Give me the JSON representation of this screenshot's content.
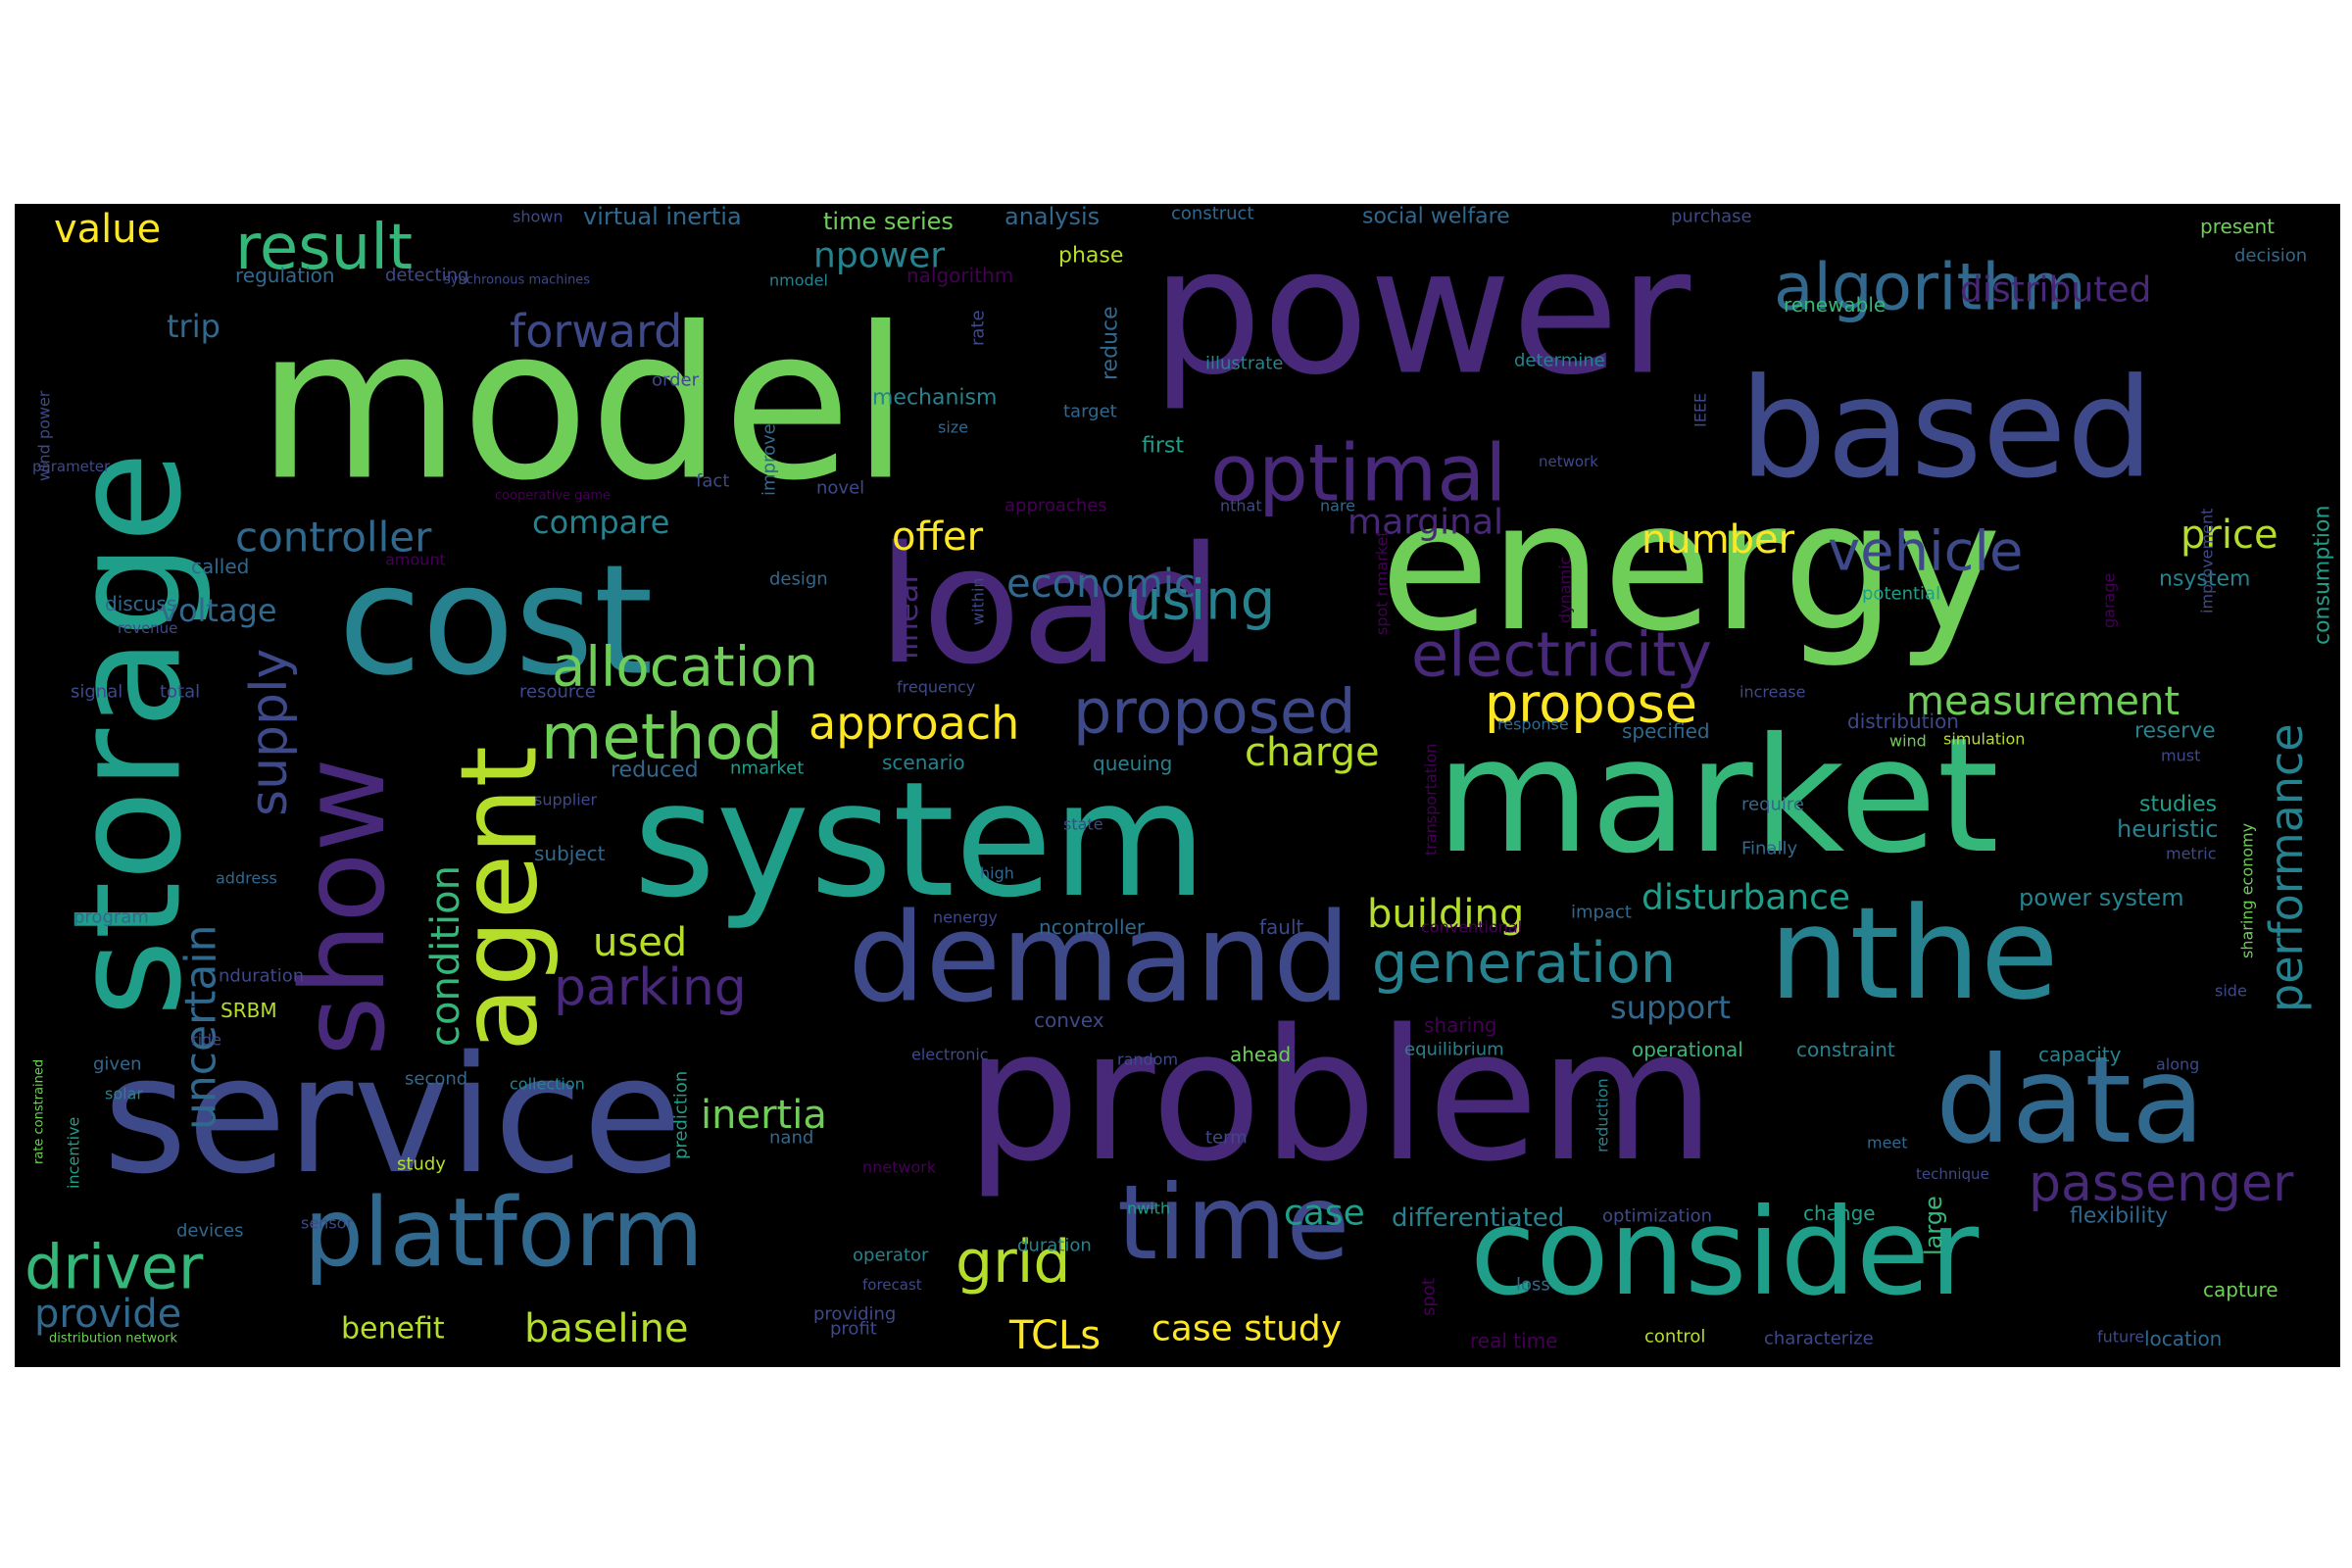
{
  "palette": {
    "background": "#000000",
    "page": "#ffffff",
    "colors": [
      "#440154",
      "#482878",
      "#3e4989",
      "#31688e",
      "#26828e",
      "#1f9e89",
      "#35b779",
      "#6ece58",
      "#b5de2b",
      "#fde725"
    ]
  },
  "words": [
    {
      "text": "model",
      "color": "#6ece58"
    },
    {
      "text": "power",
      "color": "#482878"
    },
    {
      "text": "energy",
      "color": "#6ece58"
    },
    {
      "text": "system",
      "color": "#1f9e89"
    },
    {
      "text": "market",
      "color": "#35b779"
    },
    {
      "text": "problem",
      "color": "#482878"
    },
    {
      "text": "service",
      "color": "#3e4989"
    },
    {
      "text": "storage",
      "color": "#1f9e89"
    },
    {
      "text": "cost",
      "color": "#26828e"
    },
    {
      "text": "load",
      "color": "#482878"
    },
    {
      "text": "based",
      "color": "#3e4989"
    },
    {
      "text": "nthe",
      "color": "#26828e"
    },
    {
      "text": "demand",
      "color": "#3e4989"
    },
    {
      "text": "consider",
      "color": "#1f9e89"
    },
    {
      "text": "data",
      "color": "#31688e"
    },
    {
      "text": "show",
      "color": "#482878"
    },
    {
      "text": "platform",
      "color": "#31688e"
    },
    {
      "text": "time",
      "color": "#3e4989"
    },
    {
      "text": "agent",
      "color": "#b5de2b"
    },
    {
      "text": "optimal",
      "color": "#482878"
    },
    {
      "text": "algorithm",
      "color": "#31688e"
    },
    {
      "text": "result",
      "color": "#35b779"
    },
    {
      "text": "method",
      "color": "#6ece58"
    },
    {
      "text": "electricity",
      "color": "#482878"
    },
    {
      "text": "allocation",
      "color": "#6ece58"
    },
    {
      "text": "proposed",
      "color": "#3e4989"
    },
    {
      "text": "generation",
      "color": "#26828e"
    },
    {
      "text": "driver",
      "color": "#35b779"
    },
    {
      "text": "parking",
      "color": "#482878"
    },
    {
      "text": "approach",
      "color": "#fde725"
    },
    {
      "text": "propose",
      "color": "#fde725"
    },
    {
      "text": "vehicle",
      "color": "#3e4989"
    },
    {
      "text": "using",
      "color": "#26828e"
    },
    {
      "text": "performance",
      "color": "#26828e"
    },
    {
      "text": "supply",
      "color": "#3e4989"
    },
    {
      "text": "passenger",
      "color": "#482878"
    },
    {
      "text": "grid",
      "color": "#b5de2b"
    },
    {
      "text": "forward",
      "color": "#3e4989"
    },
    {
      "text": "controller",
      "color": "#31688e"
    },
    {
      "text": "economic",
      "color": "#31688e"
    },
    {
      "text": "uncertain",
      "color": "#31688e"
    },
    {
      "text": "condition",
      "color": "#35b779"
    },
    {
      "text": "measurement",
      "color": "#6ece58"
    },
    {
      "text": "building",
      "color": "#b5de2b"
    },
    {
      "text": "baseline",
      "color": "#b5de2b"
    },
    {
      "text": "inertia",
      "color": "#6ece58"
    },
    {
      "text": "distributed",
      "color": "#482878"
    },
    {
      "text": "price",
      "color": "#b5de2b"
    },
    {
      "text": "offer",
      "color": "#fde725"
    },
    {
      "text": "number",
      "color": "#fde725"
    },
    {
      "text": "charge",
      "color": "#b5de2b"
    },
    {
      "text": "TCLs",
      "color": "#fde725"
    },
    {
      "text": "case study",
      "color": "#fde725"
    },
    {
      "text": "provide",
      "color": "#31688e"
    },
    {
      "text": "value",
      "color": "#fde725"
    },
    {
      "text": "marginal",
      "color": "#482878"
    },
    {
      "text": "used",
      "color": "#b5de2b"
    },
    {
      "text": "disturbance",
      "color": "#1f9e89"
    },
    {
      "text": "npower",
      "color": "#26828e"
    },
    {
      "text": "compare",
      "color": "#26828e"
    },
    {
      "text": "voltage",
      "color": "#31688e"
    },
    {
      "text": "case",
      "color": "#1f9e89"
    },
    {
      "text": "support",
      "color": "#31688e"
    },
    {
      "text": "linear",
      "color": "#482878"
    },
    {
      "text": "trip",
      "color": "#31688e"
    },
    {
      "text": "benefit",
      "color": "#b5de2b"
    },
    {
      "text": "differentiated",
      "color": "#26828e"
    },
    {
      "text": "large",
      "color": "#35b779"
    },
    {
      "text": "flexibility",
      "color": "#31688e"
    },
    {
      "text": "consumption",
      "color": "#1f9e89"
    },
    {
      "text": "heuristic",
      "color": "#26828e"
    },
    {
      "text": "power system",
      "color": "#26828e"
    },
    {
      "text": "studies",
      "color": "#1f9e89"
    },
    {
      "text": "reserve",
      "color": "#26828e"
    },
    {
      "text": "nsystem",
      "color": "#26828e"
    },
    {
      "text": "analysis",
      "color": "#31688e"
    },
    {
      "text": "time series",
      "color": "#6ece58"
    },
    {
      "text": "virtual inertia",
      "color": "#31688e"
    },
    {
      "text": "social welfare",
      "color": "#31688e"
    },
    {
      "text": "phase",
      "color": "#b5de2b"
    },
    {
      "text": "mechanism",
      "color": "#26828e"
    },
    {
      "text": "reduce",
      "color": "#31688e"
    },
    {
      "text": "first",
      "color": "#1f9e89"
    },
    {
      "text": "nalgorithm",
      "color": "#440154"
    },
    {
      "text": "regulation",
      "color": "#31688e"
    },
    {
      "text": "renewable",
      "color": "#35b779"
    },
    {
      "text": "present",
      "color": "#6ece58"
    },
    {
      "text": "decision",
      "color": "#31688e"
    },
    {
      "text": "construct",
      "color": "#31688e"
    },
    {
      "text": "purchase",
      "color": "#3e4989"
    },
    {
      "text": "detecting",
      "color": "#3e4989"
    },
    {
      "text": "synchronous machines",
      "color": "#3e4989"
    },
    {
      "text": "nmodel",
      "color": "#26828e"
    },
    {
      "text": "shown",
      "color": "#3e4989"
    },
    {
      "text": "rate",
      "color": "#3e4989"
    },
    {
      "text": "illustrate",
      "color": "#26828e"
    },
    {
      "text": "determine",
      "color": "#26828e"
    },
    {
      "text": "target",
      "color": "#31688e"
    },
    {
      "text": "order",
      "color": "#3e4989"
    },
    {
      "text": "improve",
      "color": "#31688e"
    },
    {
      "text": "IEEE",
      "color": "#3e4989"
    },
    {
      "text": "size",
      "color": "#31688e"
    },
    {
      "text": "wind power",
      "color": "#3e4989"
    },
    {
      "text": "parameter",
      "color": "#3e4989"
    },
    {
      "text": "fact",
      "color": "#3e4989"
    },
    {
      "text": "novel",
      "color": "#3e4989"
    },
    {
      "text": "nthat",
      "color": "#3e4989"
    },
    {
      "text": "network",
      "color": "#3e4989"
    },
    {
      "text": "nare",
      "color": "#31688e"
    },
    {
      "text": "cooperative game",
      "color": "#440154"
    },
    {
      "text": "approaches",
      "color": "#440154"
    },
    {
      "text": "called",
      "color": "#31688e"
    },
    {
      "text": "amount",
      "color": "#440154"
    },
    {
      "text": "discuss",
      "color": "#31688e"
    },
    {
      "text": "revenue",
      "color": "#3e4989"
    },
    {
      "text": "design",
      "color": "#31688e"
    },
    {
      "text": "within",
      "color": "#3e4989"
    },
    {
      "text": "spot nmarket",
      "color": "#440154"
    },
    {
      "text": "dynamic",
      "color": "#440154"
    },
    {
      "text": "potential",
      "color": "#1f9e89"
    },
    {
      "text": "improvement",
      "color": "#3e4989"
    },
    {
      "text": "garage",
      "color": "#440154"
    },
    {
      "text": "signal",
      "color": "#3e4989"
    },
    {
      "text": "total",
      "color": "#3e4989"
    },
    {
      "text": "resource",
      "color": "#3e4989"
    },
    {
      "text": "frequency",
      "color": "#3e4989"
    },
    {
      "text": "increase",
      "color": "#3e4989"
    },
    {
      "text": "distribution",
      "color": "#3e4989"
    },
    {
      "text": "specified",
      "color": "#31688e"
    },
    {
      "text": "response",
      "color": "#31688e"
    },
    {
      "text": "wind",
      "color": "#6ece58"
    },
    {
      "text": "simulation",
      "color": "#b5de2b"
    },
    {
      "text": "must",
      "color": "#3e4989"
    },
    {
      "text": "sharing economy",
      "color": "#6ece58"
    },
    {
      "text": "reduced",
      "color": "#31688e"
    },
    {
      "text": "nmarket",
      "color": "#1f9e89"
    },
    {
      "text": "scenario",
      "color": "#26828e"
    },
    {
      "text": "queuing",
      "color": "#26828e"
    },
    {
      "text": "transportation",
      "color": "#440154"
    },
    {
      "text": "supplier",
      "color": "#3e4989"
    },
    {
      "text": "state",
      "color": "#3e4989"
    },
    {
      "text": "require",
      "color": "#31688e"
    },
    {
      "text": "subject",
      "color": "#31688e"
    },
    {
      "text": "Finally",
      "color": "#31688e"
    },
    {
      "text": "metric",
      "color": "#3e4989"
    },
    {
      "text": "address",
      "color": "#31688e"
    },
    {
      "text": "high",
      "color": "#31688e"
    },
    {
      "text": "program",
      "color": "#31688e"
    },
    {
      "text": "nenergy",
      "color": "#3e4989"
    },
    {
      "text": "ncontroller",
      "color": "#31688e"
    },
    {
      "text": "fault",
      "color": "#3e4989"
    },
    {
      "text": "conventional",
      "color": "#440154"
    },
    {
      "text": "impact",
      "color": "#31688e"
    },
    {
      "text": "nduration",
      "color": "#3e4989"
    },
    {
      "text": "SRBM",
      "color": "#b5de2b"
    },
    {
      "text": "ride",
      "color": "#3e4989"
    },
    {
      "text": "rate constrained",
      "color": "#6ece58"
    },
    {
      "text": "side",
      "color": "#3e4989"
    },
    {
      "text": "sharing",
      "color": "#440154"
    },
    {
      "text": "convex",
      "color": "#3e4989"
    },
    {
      "text": "equilibrium",
      "color": "#26828e"
    },
    {
      "text": "electronic",
      "color": "#3e4989"
    },
    {
      "text": "random",
      "color": "#3e4989"
    },
    {
      "text": "ahead",
      "color": "#6ece58"
    },
    {
      "text": "operational",
      "color": "#35b779"
    },
    {
      "text": "constraint",
      "color": "#26828e"
    },
    {
      "text": "capacity",
      "color": "#26828e"
    },
    {
      "text": "along",
      "color": "#3e4989"
    },
    {
      "text": "given",
      "color": "#31688e"
    },
    {
      "text": "solar",
      "color": "#26828e"
    },
    {
      "text": "incentive",
      "color": "#1f9e89"
    },
    {
      "text": "second",
      "color": "#31688e"
    },
    {
      "text": "collection",
      "color": "#26828e"
    },
    {
      "text": "prediction",
      "color": "#1f9e89"
    },
    {
      "text": "reduction",
      "color": "#26828e"
    },
    {
      "text": "study",
      "color": "#b5de2b"
    },
    {
      "text": "nand",
      "color": "#31688e"
    },
    {
      "text": "nnetwork",
      "color": "#440154"
    },
    {
      "text": "term",
      "color": "#3e4989"
    },
    {
      "text": "meet",
      "color": "#31688e"
    },
    {
      "text": "technique",
      "color": "#3e4989"
    },
    {
      "text": "change",
      "color": "#1f9e89"
    },
    {
      "text": "optimization",
      "color": "#3e4989"
    },
    {
      "text": "nwith",
      "color": "#1f9e89"
    },
    {
      "text": "devices",
      "color": "#31688e"
    },
    {
      "text": "sensor",
      "color": "#3e4989"
    },
    {
      "text": "operator",
      "color": "#26828e"
    },
    {
      "text": "duration",
      "color": "#26828e"
    },
    {
      "text": "forecast",
      "color": "#3e4989"
    },
    {
      "text": "spot",
      "color": "#440154"
    },
    {
      "text": "loss",
      "color": "#31688e"
    },
    {
      "text": "capture",
      "color": "#6ece58"
    },
    {
      "text": "providing",
      "color": "#3e4989"
    },
    {
      "text": "profit",
      "color": "#3e4989"
    },
    {
      "text": "distribution network",
      "color": "#6ece58"
    },
    {
      "text": "real time",
      "color": "#440154"
    },
    {
      "text": "control",
      "color": "#b5de2b"
    },
    {
      "text": "characterize",
      "color": "#3e4989"
    },
    {
      "text": "future",
      "color": "#3e4989"
    },
    {
      "text": "location",
      "color": "#31688e"
    }
  ]
}
